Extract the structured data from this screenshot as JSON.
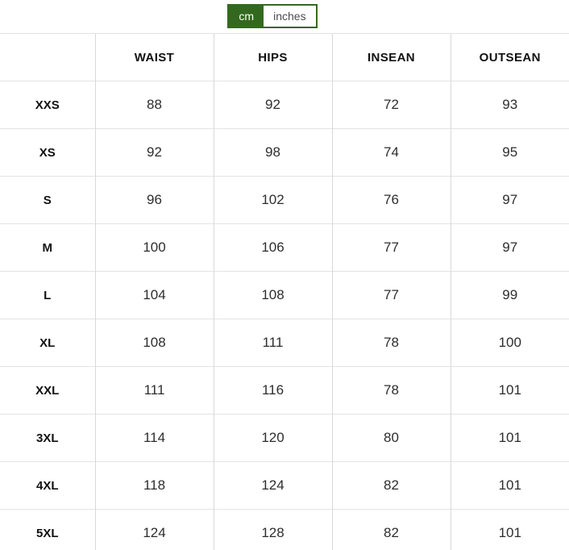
{
  "toggle": {
    "cm_label": "cm",
    "inches_label": "inches",
    "active_unit": "cm"
  },
  "table": {
    "columns": [
      "",
      "WAIST",
      "HIPS",
      "INSEAN",
      "OUTSEAN"
    ],
    "rows": [
      {
        "size": "XXS",
        "values": [
          "88",
          "92",
          "72",
          "93"
        ]
      },
      {
        "size": "XS",
        "values": [
          "92",
          "98",
          "74",
          "95"
        ]
      },
      {
        "size": "S",
        "values": [
          "96",
          "102",
          "76",
          "97"
        ]
      },
      {
        "size": "M",
        "values": [
          "100",
          "106",
          "77",
          "97"
        ]
      },
      {
        "size": "L",
        "values": [
          "104",
          "108",
          "77",
          "99"
        ]
      },
      {
        "size": "XL",
        "values": [
          "108",
          "111",
          "78",
          "100"
        ]
      },
      {
        "size": "XXL",
        "values": [
          "111",
          "116",
          "78",
          "101"
        ]
      },
      {
        "size": "3XL",
        "values": [
          "114",
          "120",
          "80",
          "101"
        ]
      },
      {
        "size": "4XL",
        "values": [
          "118",
          "124",
          "82",
          "101"
        ]
      },
      {
        "size": "5XL",
        "values": [
          "124",
          "128",
          "82",
          "101"
        ]
      }
    ]
  },
  "colors": {
    "accent_green": "#33691e",
    "active_text": "#ffffff",
    "inactive_text": "#4c4c4c",
    "grid_horizontal": "#e3e3e3",
    "grid_vertical": "#d9d9d9",
    "value_text": "#2d2d2d",
    "label_text": "#111111"
  }
}
